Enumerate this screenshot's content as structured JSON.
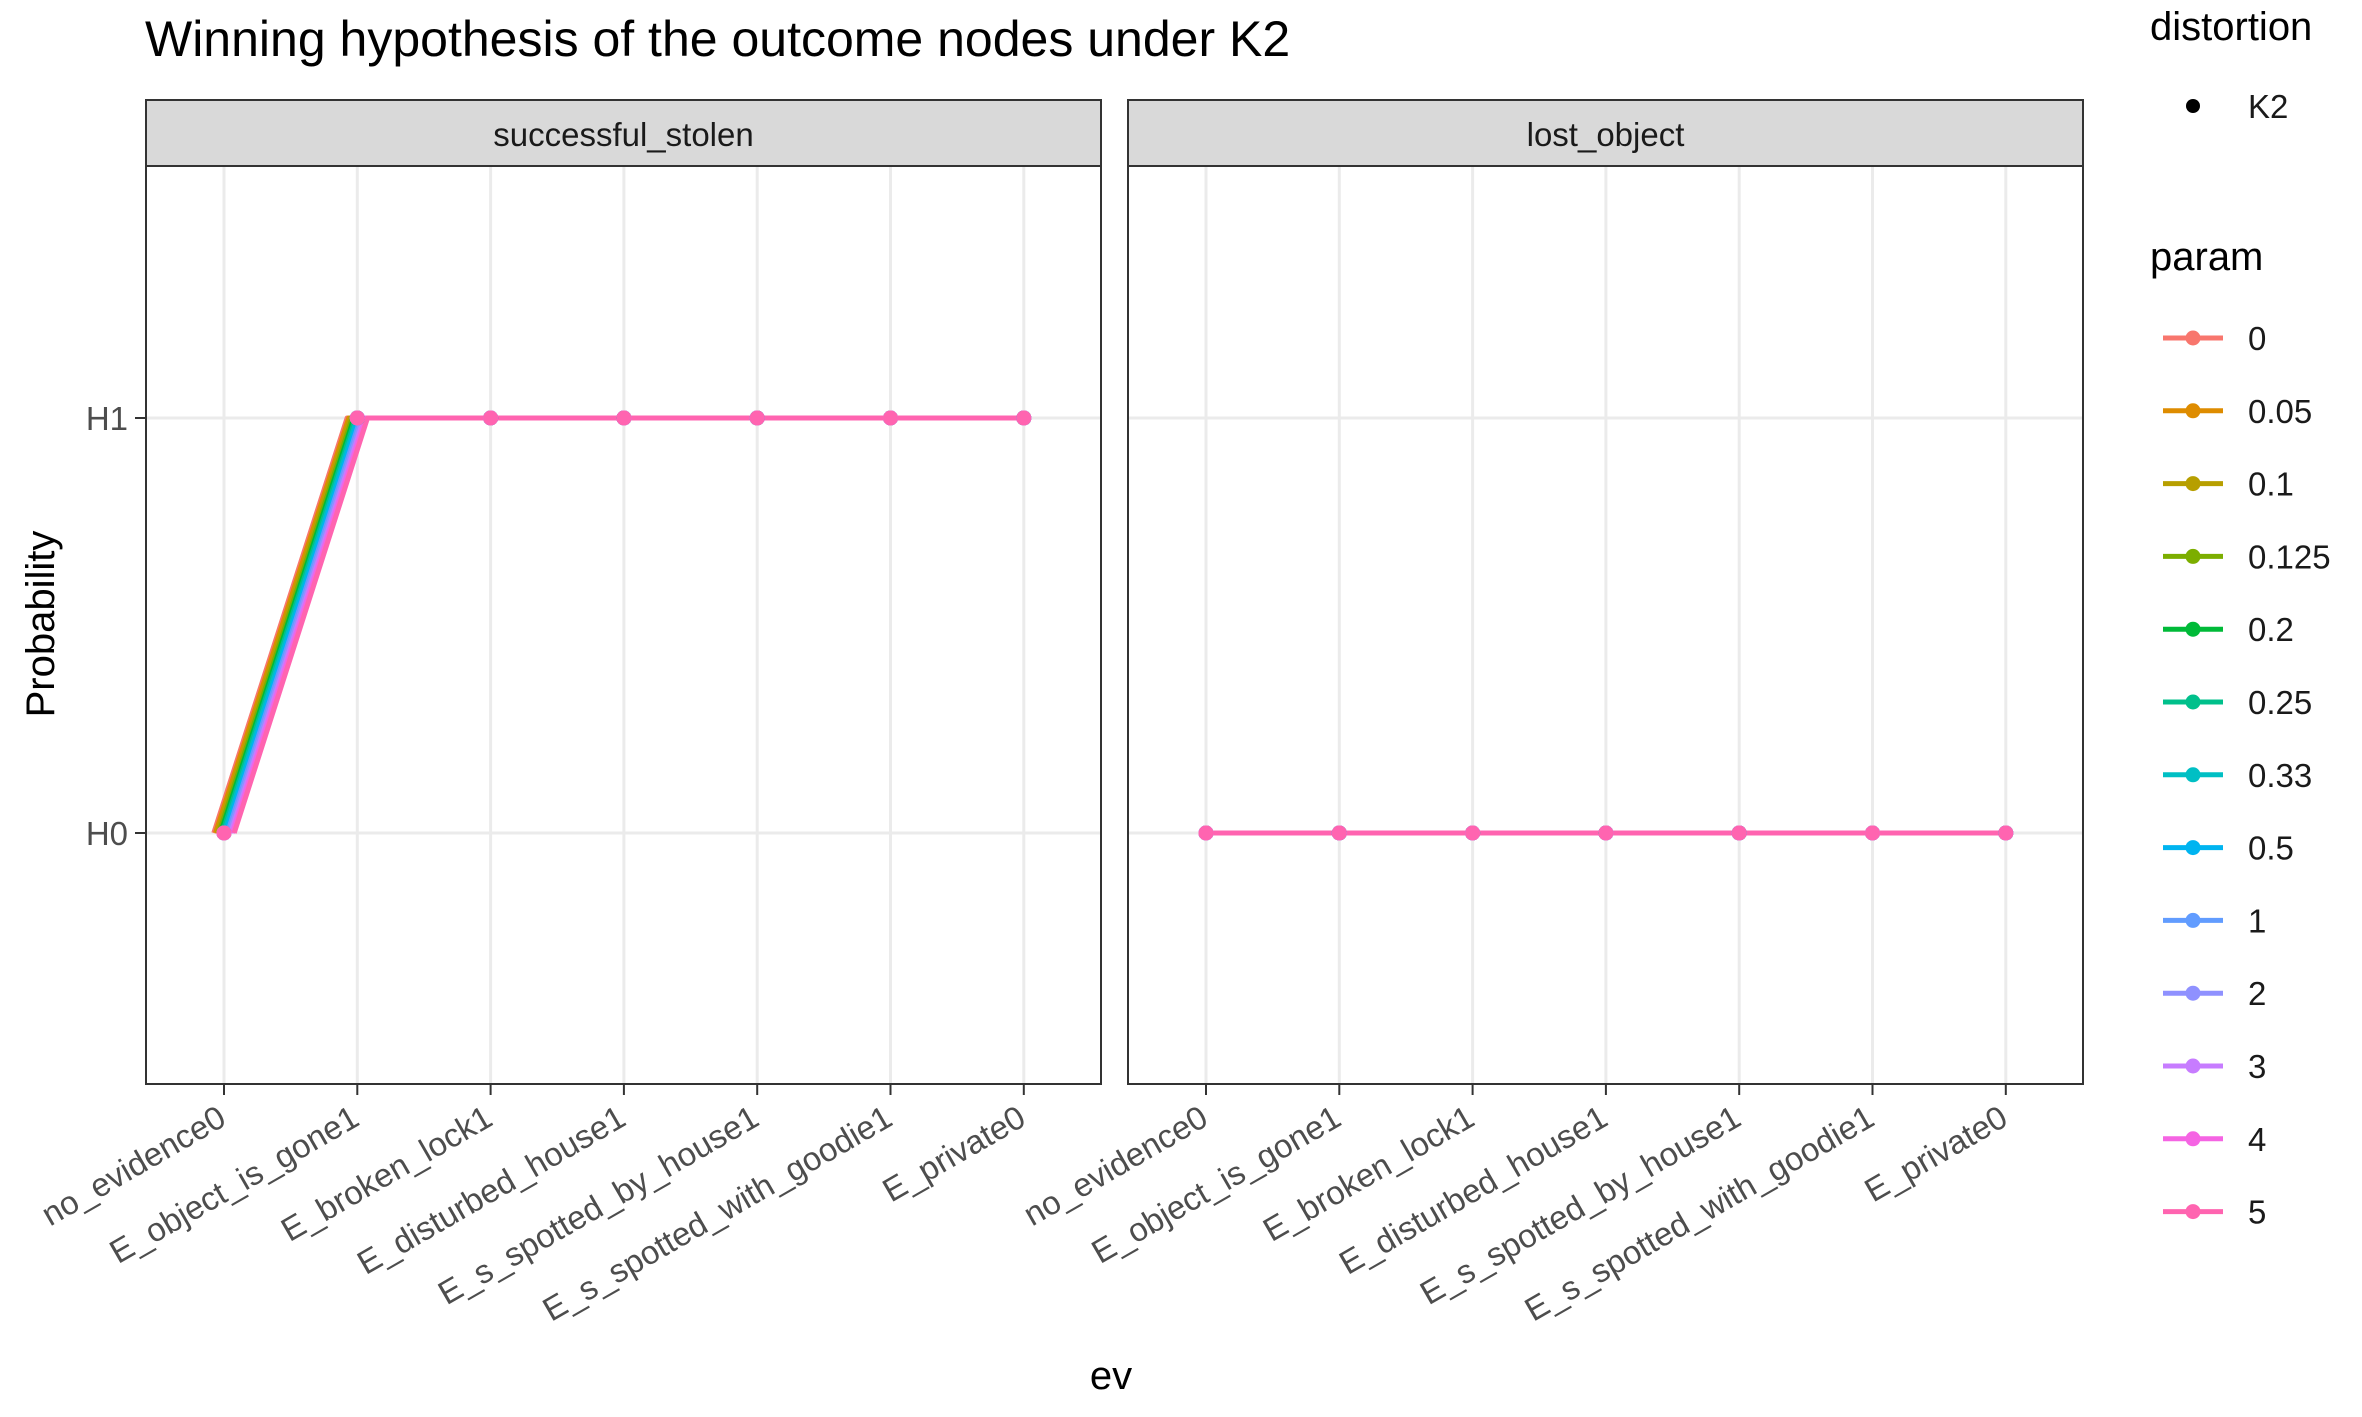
{
  "chart_data": {
    "type": "line",
    "title": "Winning hypothesis of the outcome nodes under K2",
    "xlabel": "ev",
    "ylabel": "Probability",
    "categories": [
      "no_evidence0",
      "E_object_is_gone1",
      "E_broken_lock1",
      "E_disturbed_house1",
      "E_s_spotted_by_house1",
      "E_s_spotted_with_goodie1",
      "E_private0"
    ],
    "y_levels": [
      "H0",
      "H1"
    ],
    "grid": true,
    "legend_placement": "right",
    "legends": {
      "distortion": {
        "title": "distortion",
        "entries": [
          "K2"
        ]
      },
      "param": {
        "title": "param",
        "entries": [
          "0",
          "0.05",
          "0.1",
          "0.125",
          "0.2",
          "0.25",
          "0.33",
          "0.5",
          "1",
          "2",
          "3",
          "4",
          "5"
        ]
      }
    },
    "colors": {
      "0": "#F8766D",
      "0.05": "#DE8C00",
      "0.1": "#B79F00",
      "0.125": "#7CAE00",
      "0.2": "#00BA38",
      "0.25": "#00C08B",
      "0.33": "#00BFC4",
      "0.5": "#00B4F0",
      "1": "#619CFF",
      "2": "#8F91FF",
      "3": "#C77CFF",
      "4": "#F564E3",
      "5": "#FF64B0",
      "strip_bg": "#D9D9D9",
      "grid": "#EBEBEB",
      "panel_border": "#333333"
    },
    "panels": [
      {
        "strip": "successful_stolen",
        "series": [
          {
            "name": "0",
            "values": [
              "H0",
              "H1",
              "H1",
              "H1",
              "H1",
              "H1",
              "H1"
            ]
          },
          {
            "name": "0.05",
            "values": [
              "H0",
              "H1",
              "H1",
              "H1",
              "H1",
              "H1",
              "H1"
            ]
          },
          {
            "name": "0.1",
            "values": [
              "H0",
              "H1",
              "H1",
              "H1",
              "H1",
              "H1",
              "H1"
            ]
          },
          {
            "name": "0.125",
            "values": [
              "H0",
              "H1",
              "H1",
              "H1",
              "H1",
              "H1",
              "H1"
            ]
          },
          {
            "name": "0.2",
            "values": [
              "H0",
              "H1",
              "H1",
              "H1",
              "H1",
              "H1",
              "H1"
            ]
          },
          {
            "name": "0.25",
            "values": [
              "H0",
              "H1",
              "H1",
              "H1",
              "H1",
              "H1",
              "H1"
            ]
          },
          {
            "name": "0.33",
            "values": [
              "H0",
              "H1",
              "H1",
              "H1",
              "H1",
              "H1",
              "H1"
            ]
          },
          {
            "name": "0.5",
            "values": [
              "H0",
              "H1",
              "H1",
              "H1",
              "H1",
              "H1",
              "H1"
            ]
          },
          {
            "name": "1",
            "values": [
              "H0",
              "H1",
              "H1",
              "H1",
              "H1",
              "H1",
              "H1"
            ]
          },
          {
            "name": "2",
            "values": [
              "H0",
              "H1",
              "H1",
              "H1",
              "H1",
              "H1",
              "H1"
            ]
          },
          {
            "name": "3",
            "values": [
              "H0",
              "H1",
              "H1",
              "H1",
              "H1",
              "H1",
              "H1"
            ]
          },
          {
            "name": "4",
            "values": [
              "H0",
              "H1",
              "H1",
              "H1",
              "H1",
              "H1",
              "H1"
            ]
          },
          {
            "name": "5",
            "values": [
              "H0",
              "H1",
              "H1",
              "H1",
              "H1",
              "H1",
              "H1"
            ]
          }
        ]
      },
      {
        "strip": "lost_object",
        "series": [
          {
            "name": "0",
            "values": [
              "H0",
              "H0",
              "H0",
              "H0",
              "H0",
              "H0",
              "H0"
            ]
          },
          {
            "name": "0.05",
            "values": [
              "H0",
              "H0",
              "H0",
              "H0",
              "H0",
              "H0",
              "H0"
            ]
          },
          {
            "name": "0.1",
            "values": [
              "H0",
              "H0",
              "H0",
              "H0",
              "H0",
              "H0",
              "H0"
            ]
          },
          {
            "name": "0.125",
            "values": [
              "H0",
              "H0",
              "H0",
              "H0",
              "H0",
              "H0",
              "H0"
            ]
          },
          {
            "name": "0.2",
            "values": [
              "H0",
              "H0",
              "H0",
              "H0",
              "H0",
              "H0",
              "H0"
            ]
          },
          {
            "name": "0.25",
            "values": [
              "H0",
              "H0",
              "H0",
              "H0",
              "H0",
              "H0",
              "H0"
            ]
          },
          {
            "name": "0.33",
            "values": [
              "H0",
              "H0",
              "H0",
              "H0",
              "H0",
              "H0",
              "H0"
            ]
          },
          {
            "name": "0.5",
            "values": [
              "H0",
              "H0",
              "H0",
              "H0",
              "H0",
              "H0",
              "H0"
            ]
          },
          {
            "name": "1",
            "values": [
              "H0",
              "H0",
              "H0",
              "H0",
              "H0",
              "H0",
              "H0"
            ]
          },
          {
            "name": "2",
            "values": [
              "H0",
              "H0",
              "H0",
              "H0",
              "H0",
              "H0",
              "H0"
            ]
          },
          {
            "name": "3",
            "values": [
              "H0",
              "H0",
              "H0",
              "H0",
              "H0",
              "H0",
              "H0"
            ]
          },
          {
            "name": "4",
            "values": [
              "H0",
              "H0",
              "H0",
              "H0",
              "H0",
              "H0",
              "H0"
            ]
          },
          {
            "name": "5",
            "values": [
              "H0",
              "H0",
              "H0",
              "H0",
              "H0",
              "H0",
              "H0"
            ]
          }
        ]
      }
    ]
  }
}
